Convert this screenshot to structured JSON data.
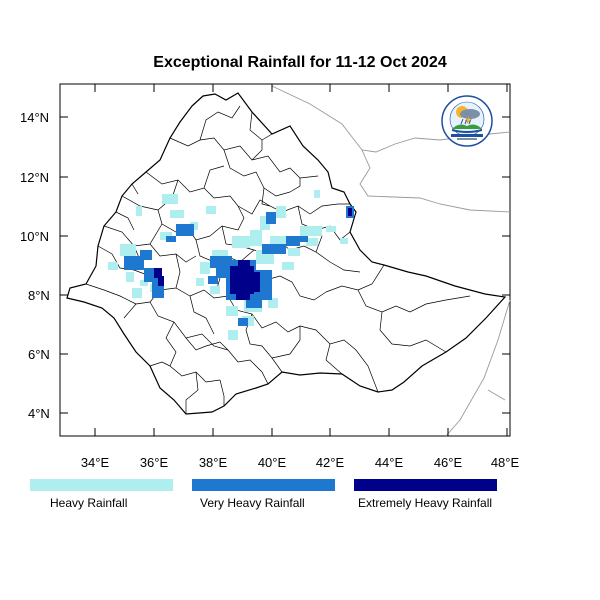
{
  "title": "Exceptional Rainfall for 11-12 Oct 2024",
  "axes": {
    "lat_ticks": [
      "14°N",
      "12°N",
      "10°N",
      "8°N",
      "6°N",
      "4°N"
    ],
    "lon_ticks": [
      "34°E",
      "36°E",
      "38°E",
      "40°E",
      "42°E",
      "44°E",
      "46°E",
      "48°E"
    ]
  },
  "legend": [
    {
      "label": "Heavy Rainfall",
      "color": "#aeeeee"
    },
    {
      "label": "Very Heavy Rainfall",
      "color": "#1f78d0"
    },
    {
      "label": "Extremely Heavy Rainfall",
      "color": "#00008b"
    }
  ],
  "colors": {
    "heavy": "#aeeeee",
    "very_heavy": "#1f78d0",
    "extreme": "#00008b",
    "mid_blue": "#4aa3e6",
    "border": "#000000",
    "neighbor": "#9a9a9a"
  },
  "logo": {
    "icon": "meteorology-institute-logo"
  }
}
